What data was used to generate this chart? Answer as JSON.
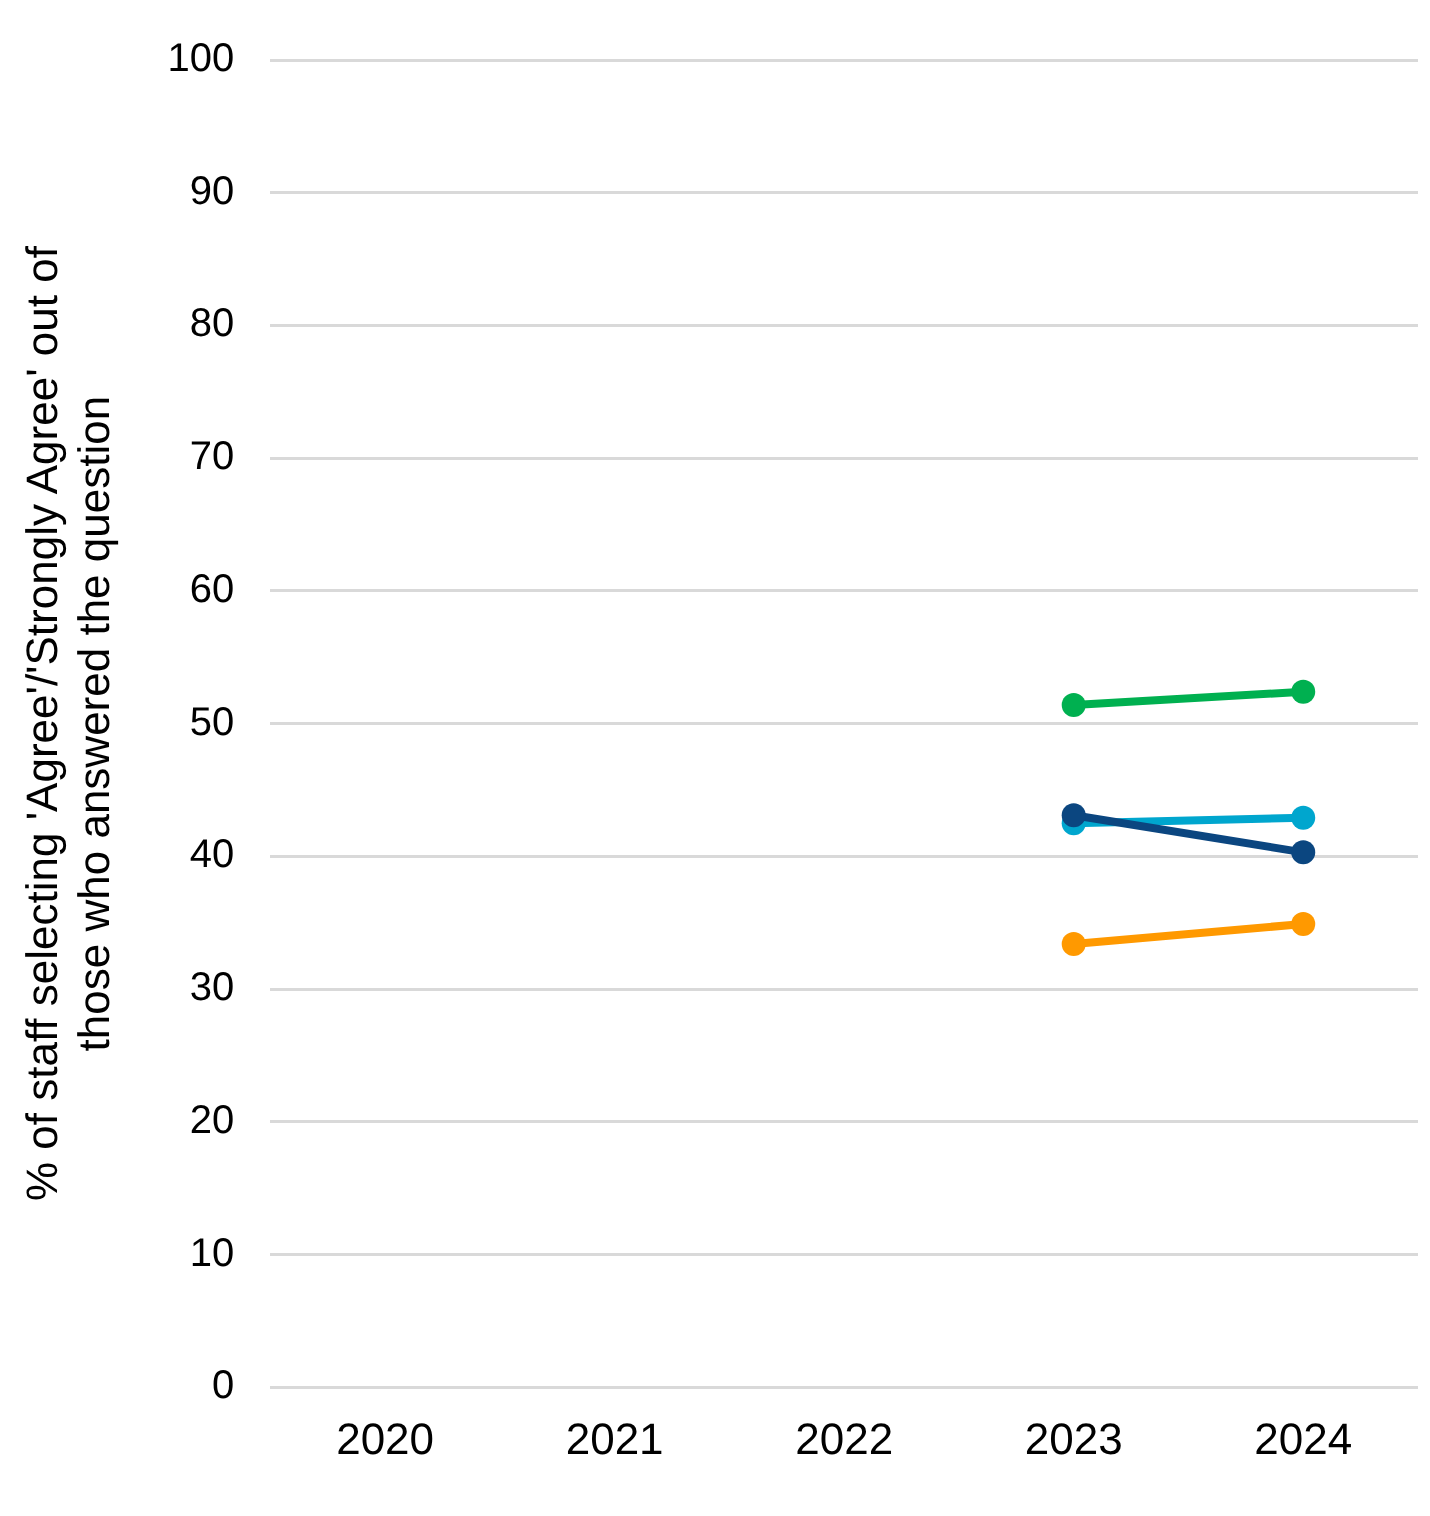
{
  "chart_data": {
    "type": "line",
    "ylabel": "% of staff selecting 'Agree'/'Strongly Agree' out of those who answered the question",
    "categories": [
      "2020",
      "2021",
      "2022",
      "2023",
      "2024"
    ],
    "series": [
      {
        "color": "#00b050",
        "values": [
          null,
          null,
          null,
          51.4,
          52.4
        ]
      },
      {
        "color": "#0b4680",
        "values": [
          null,
          null,
          null,
          43.1,
          40.3
        ]
      },
      {
        "color": "#00a6ce",
        "values": [
          null,
          null,
          null,
          42.5,
          42.9
        ]
      },
      {
        "color": "#ff9900",
        "values": [
          null,
          null,
          null,
          33.4,
          34.9
        ]
      }
    ],
    "ylim": [
      0,
      100
    ],
    "yticks": [
      0,
      10,
      20,
      30,
      40,
      50,
      60,
      70,
      80,
      90,
      100
    ],
    "grid": "y",
    "legend": false,
    "marker": "circle",
    "line_style": "solid"
  }
}
